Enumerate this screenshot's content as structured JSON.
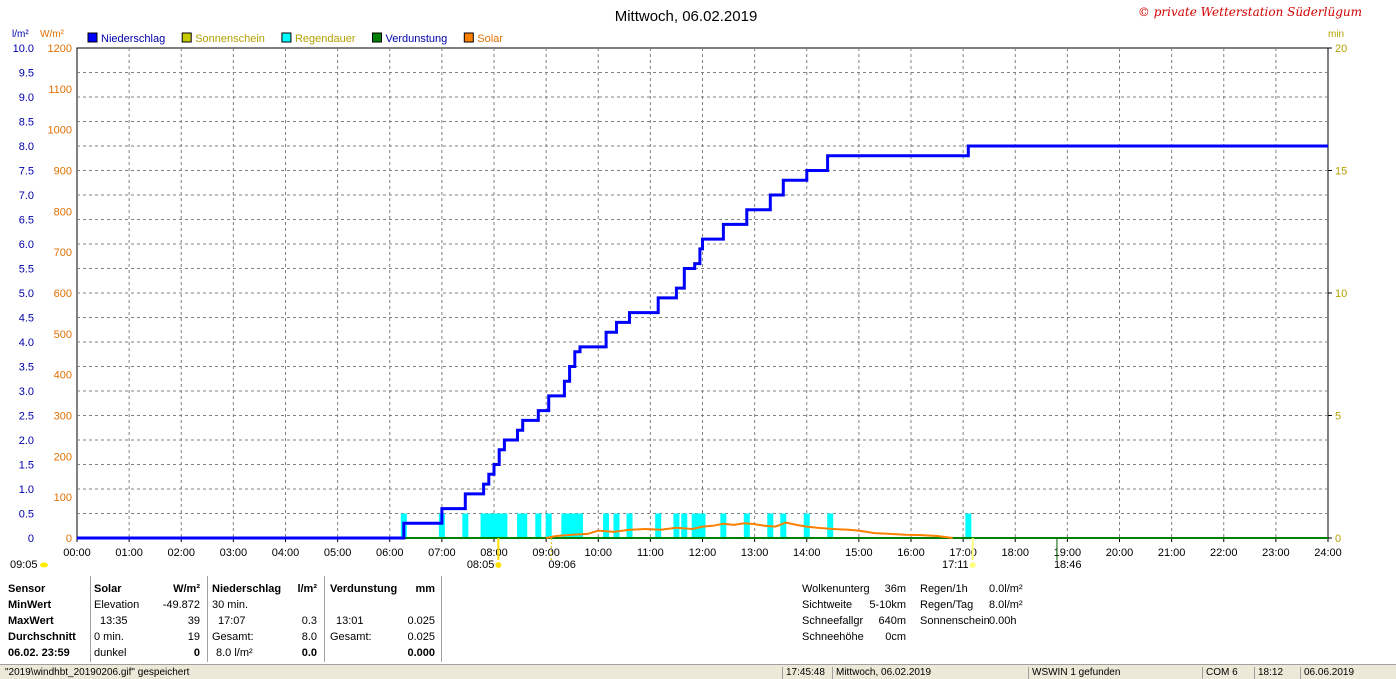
{
  "header": {
    "title": "Mittwoch, 06.02.2019",
    "watermark": "© private Wetterstation Süderlügum"
  },
  "axes": {
    "left1_unit": "l/m²",
    "left2_unit": "W/m²",
    "right_unit": "min"
  },
  "legend": [
    {
      "label": "Niederschlag",
      "color": "#0000ff",
      "text_color": "#0000aa"
    },
    {
      "label": "Sonnenschein",
      "color": "#c8c800",
      "text_color": "#b4a000"
    },
    {
      "label": "Regendauer",
      "color": "#00ffff",
      "text_color": "#b4a000"
    },
    {
      "label": "Verdunstung",
      "color": "#008000",
      "text_color": "#0000aa"
    },
    {
      "label": "Solar",
      "color": "#ff8000",
      "text_color": "#e07000"
    }
  ],
  "sun_markers": {
    "left_time": "09:05",
    "sunrise": "08:05",
    "solar_noon_label": "09:06",
    "sunset": "17:11",
    "right_label": "18:46"
  },
  "chart_data": {
    "type": "line",
    "title": "Mittwoch, 06.02.2019",
    "x_unit": "hours",
    "xlim": [
      0,
      24
    ],
    "x_ticks": [
      "00:00",
      "01:00",
      "02:00",
      "03:00",
      "04:00",
      "05:00",
      "06:00",
      "07:00",
      "08:00",
      "09:00",
      "10:00",
      "11:00",
      "12:00",
      "13:00",
      "14:00",
      "15:00",
      "16:00",
      "17:00",
      "18:00",
      "19:00",
      "20:00",
      "21:00",
      "22:00",
      "23:00",
      "24:00"
    ],
    "y_left1": {
      "label": "l/m²",
      "ylim": [
        0,
        10
      ],
      "ticks": [
        "0",
        "0.5",
        "1.0",
        "1.5",
        "2.0",
        "2.5",
        "3.0",
        "3.5",
        "4.0",
        "4.5",
        "5.0",
        "5.5",
        "6.0",
        "6.5",
        "7.0",
        "7.5",
        "8.0",
        "8.5",
        "9.0",
        "9.5",
        "10.0"
      ]
    },
    "y_left2": {
      "label": "W/m²",
      "ylim": [
        0,
        1200
      ],
      "ticks": [
        "0",
        "100",
        "200",
        "300",
        "400",
        "500",
        "600",
        "700",
        "800",
        "900",
        "1000",
        "1100",
        "1200"
      ]
    },
    "y_right": {
      "label": "min",
      "ylim": [
        0,
        20
      ],
      "ticks": [
        "0",
        "5",
        "10",
        "15",
        "20"
      ]
    },
    "grid": true,
    "legend_position": "top-left",
    "series": [
      {
        "name": "Niederschlag",
        "axis": "left1",
        "color": "#0000ff",
        "step": true,
        "points": [
          [
            0,
            0
          ],
          [
            6.27,
            0
          ],
          [
            6.27,
            0.3
          ],
          [
            7.0,
            0.3
          ],
          [
            7.0,
            0.6
          ],
          [
            7.45,
            0.6
          ],
          [
            7.45,
            0.9
          ],
          [
            7.8,
            0.9
          ],
          [
            7.8,
            1.1
          ],
          [
            7.9,
            1.1
          ],
          [
            7.9,
            1.3
          ],
          [
            8.0,
            1.3
          ],
          [
            8.0,
            1.5
          ],
          [
            8.1,
            1.5
          ],
          [
            8.1,
            1.8
          ],
          [
            8.2,
            1.8
          ],
          [
            8.2,
            2.0
          ],
          [
            8.45,
            2.0
          ],
          [
            8.45,
            2.2
          ],
          [
            8.55,
            2.2
          ],
          [
            8.55,
            2.4
          ],
          [
            8.85,
            2.4
          ],
          [
            8.85,
            2.6
          ],
          [
            9.05,
            2.6
          ],
          [
            9.05,
            2.9
          ],
          [
            9.35,
            2.9
          ],
          [
            9.35,
            3.2
          ],
          [
            9.45,
            3.2
          ],
          [
            9.45,
            3.5
          ],
          [
            9.55,
            3.5
          ],
          [
            9.55,
            3.8
          ],
          [
            9.65,
            3.8
          ],
          [
            9.65,
            3.9
          ],
          [
            10.15,
            3.9
          ],
          [
            10.15,
            4.2
          ],
          [
            10.35,
            4.2
          ],
          [
            10.35,
            4.4
          ],
          [
            10.6,
            4.4
          ],
          [
            10.6,
            4.6
          ],
          [
            11.15,
            4.6
          ],
          [
            11.15,
            4.9
          ],
          [
            11.5,
            4.9
          ],
          [
            11.5,
            5.1
          ],
          [
            11.65,
            5.1
          ],
          [
            11.65,
            5.5
          ],
          [
            11.85,
            5.5
          ],
          [
            11.85,
            5.6
          ],
          [
            11.95,
            5.6
          ],
          [
            11.95,
            5.9
          ],
          [
            12.0,
            5.9
          ],
          [
            12.0,
            6.1
          ],
          [
            12.4,
            6.1
          ],
          [
            12.4,
            6.4
          ],
          [
            12.85,
            6.4
          ],
          [
            12.85,
            6.7
          ],
          [
            13.3,
            6.7
          ],
          [
            13.3,
            7.0
          ],
          [
            13.55,
            7.0
          ],
          [
            13.55,
            7.3
          ],
          [
            14.0,
            7.3
          ],
          [
            14.0,
            7.5
          ],
          [
            14.4,
            7.5
          ],
          [
            14.4,
            7.8
          ],
          [
            17.1,
            7.8
          ],
          [
            17.1,
            8.0
          ],
          [
            24,
            8.0
          ]
        ]
      },
      {
        "name": "Solar",
        "axis": "left2",
        "color": "#ff8000",
        "points": [
          [
            9.0,
            0
          ],
          [
            9.2,
            5
          ],
          [
            9.5,
            8
          ],
          [
            9.8,
            10
          ],
          [
            10.0,
            18
          ],
          [
            10.3,
            15
          ],
          [
            10.6,
            20
          ],
          [
            10.9,
            22
          ],
          [
            11.2,
            20
          ],
          [
            11.5,
            25
          ],
          [
            11.8,
            22
          ],
          [
            12.0,
            28
          ],
          [
            12.2,
            30
          ],
          [
            12.4,
            35
          ],
          [
            12.6,
            32
          ],
          [
            12.8,
            36
          ],
          [
            13.0,
            34
          ],
          [
            13.2,
            30
          ],
          [
            13.4,
            28
          ],
          [
            13.6,
            38
          ],
          [
            13.8,
            32
          ],
          [
            14.0,
            28
          ],
          [
            14.2,
            25
          ],
          [
            14.5,
            22
          ],
          [
            14.8,
            20
          ],
          [
            15.0,
            18
          ],
          [
            15.3,
            12
          ],
          [
            15.6,
            10
          ],
          [
            15.9,
            8
          ],
          [
            16.2,
            7
          ],
          [
            16.5,
            5
          ],
          [
            16.8,
            0
          ]
        ]
      },
      {
        "name": "Verdunstung",
        "axis": "left1",
        "color": "#008000",
        "points": [
          [
            0,
            0
          ],
          [
            24,
            0
          ]
        ]
      },
      {
        "name": "Regendauer",
        "axis": "right",
        "color": "#00ffff",
        "type": "bar",
        "bar_times": [
          6.27,
          7.0,
          7.45,
          7.8,
          7.9,
          8.0,
          8.1,
          8.2,
          8.5,
          8.58,
          8.85,
          9.05,
          9.35,
          9.45,
          9.55,
          9.65,
          10.15,
          10.35,
          10.6,
          11.15,
          11.5,
          11.65,
          11.85,
          11.95,
          12.0,
          12.4,
          12.85,
          13.3,
          13.55,
          14.0,
          14.45,
          17.1
        ],
        "bar_values": [
          1,
          1,
          1,
          1,
          1,
          1,
          1,
          1,
          1,
          1,
          1,
          1,
          1,
          1,
          1,
          1,
          1,
          1,
          1,
          1,
          1,
          1,
          1,
          1,
          1,
          1,
          1,
          1,
          1,
          1,
          1,
          1
        ]
      }
    ]
  },
  "panel": {
    "sensor": {
      "h": "Sensor",
      "min": "MinWert",
      "max": "MaxWert",
      "avg": "Durchschnitt",
      "date": "06.02. 23:59"
    },
    "solar": {
      "h": "Solar",
      "unit": "W/m²",
      "min_label": "Elevation",
      "min_val": "-49.872",
      "max_label": "13:35",
      "max_val": "39",
      "avg_label": "0 min.",
      "avg_val": "19",
      "last_label": "dunkel",
      "last_val": "0"
    },
    "rain": {
      "h": "Niederschlag",
      "unit": "l/m²",
      "min_label": "30 min.",
      "max_label": "17:07",
      "max_val": "0.3",
      "avg_label": "Gesamt:",
      "avg_val": "8.0",
      "last_label": "8.0 l/m²",
      "last_val": "0.0"
    },
    "evap": {
      "h": "Verdunstung",
      "unit": "mm",
      "max_label": "13:01",
      "max_val": "0.025",
      "avg_label": "Gesamt:",
      "avg_val": "0.025",
      "last_val": "0.000"
    },
    "weather": {
      "cloud_label": "Wolkenunterg",
      "cloud_val": "36m",
      "vis_label": "Sichtweite",
      "vis_val": "5-10km",
      "snowfall_label": "Schneefallgr",
      "snowfall_val": "640m",
      "snowh_label": "Schneehöhe",
      "snowh_val": "0cm"
    },
    "rainstats": {
      "r1h_label": "Regen/1h",
      "r1h_val": "0.0l/m²",
      "rday_label": "Regen/Tag",
      "rday_val": "8.0l/m²",
      "sun_label": "Sonnenschein",
      "sun_val": "0.00h"
    }
  },
  "statusbar": {
    "file": "\"2019\\windhbt_20190206.gif\" gespeichert",
    "time": "17:45:48",
    "date": "Mittwoch, 06.02.2019",
    "wswin": "WSWIN 1 gefunden",
    "com": "COM 6",
    "clock": "18:12",
    "today": "06.06.2019"
  }
}
